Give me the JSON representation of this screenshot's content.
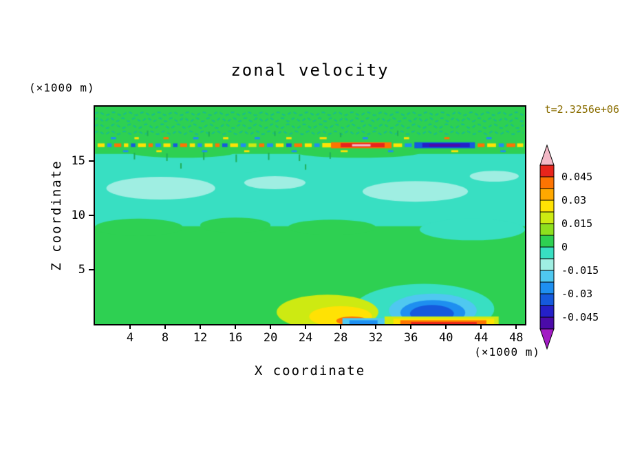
{
  "chart_data": {
    "type": "contour",
    "title": "zonal velocity",
    "time_label": "t=2.3256e+06",
    "time_label_color": "#8a6d00",
    "xlabel": "X coordinate",
    "ylabel": "Z coordinate",
    "x_unit_label": "(×1000 m)",
    "y_unit_label": "(×1000 m)",
    "x_range": [
      0,
      49
    ],
    "y_range": [
      0,
      20
    ],
    "x_ticks": [
      4,
      8,
      12,
      16,
      20,
      24,
      28,
      32,
      36,
      40,
      44,
      48
    ],
    "y_ticks": [
      5,
      10,
      15
    ],
    "levels": [
      0.045,
      0.03,
      0.015,
      0,
      -0.015,
      -0.03,
      -0.045
    ],
    "colorbar": {
      "labels": [
        "0.045",
        "0.03",
        "0.015",
        "0",
        "-0.015",
        "-0.03",
        "-0.045"
      ],
      "cell_colors": [
        "#e8251c",
        "#fd7402",
        "#ffa800",
        "#ffe204",
        "#cdea12",
        "#8ee01e",
        "#2ed052",
        "#38dfc2",
        "#9feee2",
        "#4fc8f0",
        "#1e8ff0",
        "#155add",
        "#2520c8",
        "#4b0ba8"
      ],
      "top_arrow_color": "#f3b9c7",
      "bottom_arrow_color": "#a21bc4"
    },
    "field": {
      "background": "#2ed052",
      "shapes": [
        [
          "r",
          0,
          49,
          9.0,
          15.65,
          "#38dfc2"
        ],
        [
          "e",
          5,
          8.9,
          5,
          0.8,
          "#2ed052"
        ],
        [
          "e",
          16,
          9.1,
          4,
          0.7,
          "#2ed052"
        ],
        [
          "e",
          27,
          8.9,
          5,
          0.7,
          "#2ed052"
        ],
        [
          "e",
          43,
          8.7,
          6,
          1.0,
          "#38dfc2"
        ],
        [
          "e",
          10,
          15.8,
          6,
          0.5,
          "#2ed052"
        ],
        [
          "e",
          30,
          15.75,
          7,
          0.45,
          "#2ed052"
        ],
        [
          "e",
          7.5,
          12.5,
          6.2,
          1.05,
          "#9feee2"
        ],
        [
          "e",
          20.5,
          13.0,
          3.5,
          0.6,
          "#9feee2"
        ],
        [
          "e",
          36.5,
          12.2,
          6.0,
          0.95,
          "#9feee2"
        ],
        [
          "e",
          45.5,
          13.6,
          2.8,
          0.5,
          "#9feee2"
        ],
        [
          "e",
          37.5,
          1.4,
          8,
          2.3,
          "#38dfc2"
        ],
        [
          "e",
          38.5,
          1.25,
          5.0,
          1.55,
          "#4fc8f0"
        ],
        [
          "e",
          38.5,
          1.05,
          3.7,
          1.15,
          "#1e8ff0"
        ],
        [
          "e",
          38.4,
          0.95,
          2.5,
          0.8,
          "#155add"
        ],
        [
          "r",
          33,
          46,
          0,
          0.7,
          "#cdea12"
        ],
        [
          "r",
          34,
          45.5,
          0,
          0.5,
          "#ffe204"
        ],
        [
          "r",
          34.8,
          44.6,
          0,
          0.35,
          "#fd7402"
        ],
        [
          "r",
          36,
          43.5,
          0,
          0.18,
          "#e8251c"
        ],
        [
          "e",
          26.5,
          1.1,
          5.8,
          1.6,
          "#cdea12"
        ],
        [
          "e",
          28,
          0.7,
          3.6,
          0.95,
          "#ffe204"
        ],
        [
          "e",
          29.3,
          0.3,
          1.8,
          0.4,
          "#fd7402"
        ],
        [
          "r",
          28.2,
          33,
          0,
          0.55,
          "#4fc8f0"
        ],
        [
          "r",
          29,
          32.2,
          0,
          0.35,
          "#1e8ff0"
        ]
      ],
      "surface_rows": [
        {
          "z": 16.45,
          "h": 0.34,
          "flecks": [
            [
              0.3,
              1.1,
              "#ffe204"
            ],
            [
              1.4,
              1.9,
              "#1e8ff0"
            ],
            [
              2.2,
              3.0,
              "#fd7402"
            ],
            [
              3.3,
              3.8,
              "#ffe204"
            ],
            [
              4.1,
              4.6,
              "#155add"
            ],
            [
              4.9,
              5.8,
              "#ffe204"
            ],
            [
              6.1,
              6.6,
              "#fd7402"
            ],
            [
              6.9,
              7.5,
              "#1e8ff0"
            ],
            [
              7.8,
              8.6,
              "#ffe204"
            ],
            [
              8.9,
              9.4,
              "#155add"
            ],
            [
              9.7,
              10.5,
              "#fd7402"
            ],
            [
              10.8,
              11.4,
              "#ffe204"
            ],
            [
              11.7,
              12.2,
              "#1e8ff0"
            ],
            [
              12.5,
              13.4,
              "#ffe204"
            ],
            [
              13.7,
              14.2,
              "#fd7402"
            ],
            [
              14.5,
              15.1,
              "#155add"
            ],
            [
              15.4,
              16.3,
              "#ffe204"
            ],
            [
              16.6,
              17.2,
              "#1e8ff0"
            ],
            [
              17.5,
              18.4,
              "#cdea12"
            ],
            [
              18.7,
              19.3,
              "#fd7402"
            ],
            [
              19.6,
              20.3,
              "#1e8ff0"
            ],
            [
              20.6,
              21.5,
              "#ffe204"
            ],
            [
              21.8,
              22.4,
              "#155add"
            ],
            [
              22.7,
              23.6,
              "#fd7402"
            ],
            [
              23.9,
              24.7,
              "#ffe204"
            ],
            [
              25.0,
              25.6,
              "#1e8ff0"
            ],
            [
              25.9,
              26.9,
              "#ffe204",
              0.4
            ],
            [
              26.9,
              33.8,
              "#fd7402",
              0.55
            ],
            [
              28.0,
              33.0,
              "#e8251c",
              0.38
            ],
            [
              29.3,
              31.4,
              "#f3b9c7",
              0.2
            ],
            [
              34.0,
              35.0,
              "#ffe204"
            ],
            [
              35.3,
              36.1,
              "#1e8ff0"
            ],
            [
              36.4,
              43.3,
              "#155add",
              0.55
            ],
            [
              37.3,
              42.7,
              "#2520c8",
              0.38
            ],
            [
              38.1,
              41.6,
              "#4b0ba8",
              0.22
            ],
            [
              43.6,
              44.4,
              "#fd7402"
            ],
            [
              44.7,
              45.7,
              "#ffe204"
            ],
            [
              46.0,
              46.6,
              "#1e8ff0"
            ],
            [
              46.9,
              47.9,
              "#fd7402"
            ],
            [
              48.1,
              48.8,
              "#ffe204"
            ]
          ]
        },
        {
          "z": 17.1,
          "h": 0.2,
          "flecks": [
            [
              1.8,
              2.4,
              "#1e8ff0"
            ],
            [
              4.5,
              5.0,
              "#ffe204"
            ],
            [
              7.8,
              8.4,
              "#fd7402"
            ],
            [
              11.2,
              11.8,
              "#1e8ff0"
            ],
            [
              14.6,
              15.2,
              "#ffe204"
            ],
            [
              18.2,
              18.8,
              "#1e8ff0"
            ],
            [
              21.8,
              22.4,
              "#ffe204"
            ],
            [
              25.6,
              26.4,
              "#ffe204"
            ],
            [
              30.5,
              31.1,
              "#1e8ff0"
            ],
            [
              35.2,
              35.8,
              "#ffe204"
            ],
            [
              39.8,
              40.4,
              "#fd7402"
            ],
            [
              44.6,
              45.2,
              "#1e8ff0"
            ]
          ]
        },
        {
          "z": 15.9,
          "h": 0.18,
          "flecks": [
            [
              3.2,
              3.8,
              "#1e8ff0"
            ],
            [
              7.0,
              7.6,
              "#ffe204"
            ],
            [
              12.2,
              12.8,
              "#1e8ff0"
            ],
            [
              17.0,
              17.6,
              "#ffe204"
            ],
            [
              22.4,
              23.0,
              "#1e8ff0"
            ],
            [
              28.0,
              28.8,
              "#ffe204"
            ],
            [
              33.4,
              34.0,
              "#1e8ff0"
            ],
            [
              40.6,
              41.4,
              "#ffe204"
            ],
            [
              46.2,
              46.8,
              "#1e8ff0"
            ]
          ]
        }
      ],
      "wavy_rows": [
        {
          "z": 17.6,
          "amp": 0.14,
          "wl": 1.5,
          "color": "#19bd8f"
        },
        {
          "z": 18.2,
          "amp": 0.18,
          "wl": 1.8,
          "color": "#19bd8f"
        },
        {
          "z": 18.8,
          "amp": 0.16,
          "wl": 1.4,
          "color": "#19bd8f"
        },
        {
          "z": 19.35,
          "amp": 0.14,
          "wl": 1.7,
          "color": "#19bd8f"
        }
      ],
      "drip_color": "#1fae57",
      "drips": [
        [
          4.5,
          15.15,
          15.75
        ],
        [
          8.2,
          15.0,
          15.7
        ],
        [
          12.4,
          15.1,
          15.8
        ],
        [
          16.1,
          14.9,
          15.6
        ],
        [
          19.8,
          15.1,
          15.75
        ],
        [
          23.3,
          15.0,
          15.6
        ],
        [
          26.8,
          15.2,
          15.8
        ],
        [
          6.0,
          17.3,
          17.8
        ],
        [
          13.0,
          17.25,
          17.7
        ],
        [
          20.5,
          17.3,
          17.75
        ],
        [
          28.0,
          17.2,
          17.6
        ],
        [
          34.5,
          17.3,
          17.8
        ],
        [
          9.8,
          14.3,
          14.8
        ],
        [
          24.0,
          14.2,
          14.7
        ]
      ]
    }
  }
}
